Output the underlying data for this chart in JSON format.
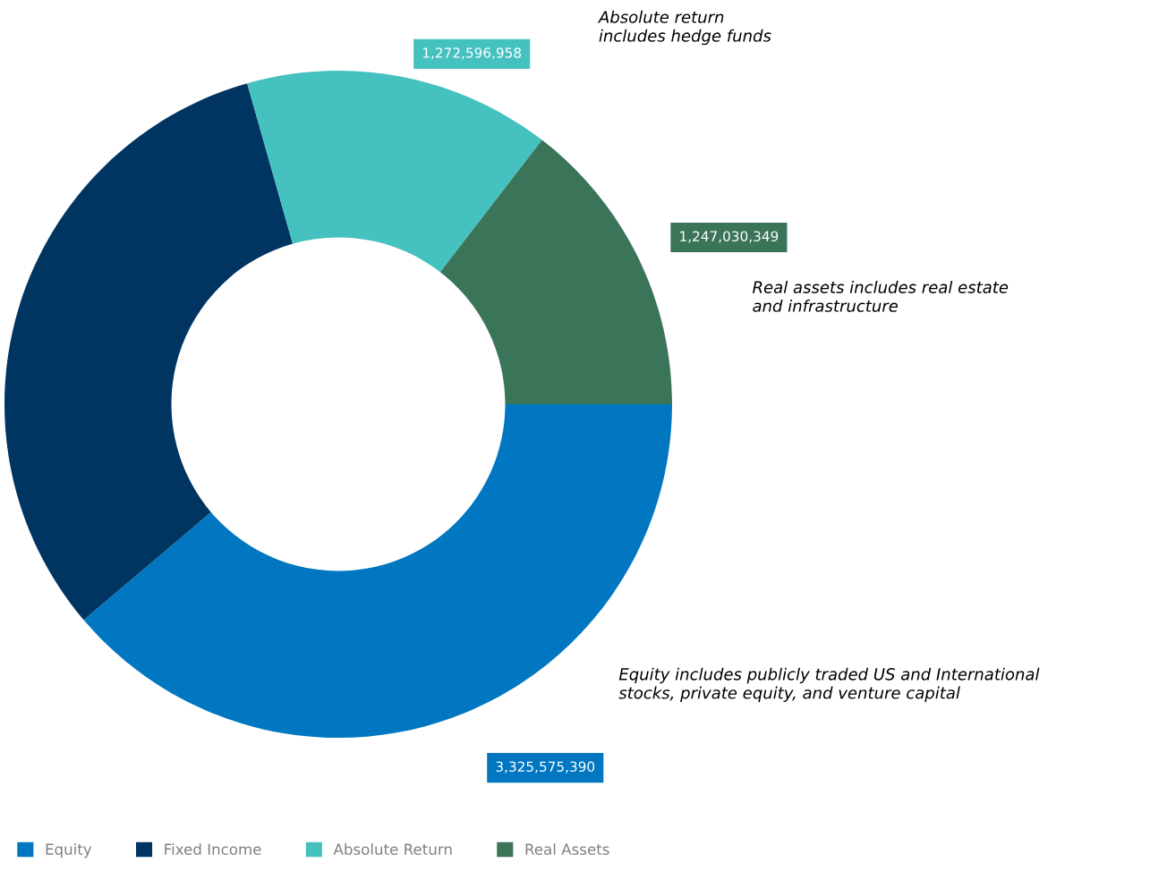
{
  "chart_data": {
    "type": "donut",
    "categories": [
      "Equity",
      "Fixed Income",
      "Absolute Return",
      "Real Assets"
    ],
    "values": [
      3325575390,
      2725000000,
      1272596958,
      1247030349
    ],
    "colors": [
      "#0077c0",
      "#003562",
      "#45c1c0",
      "#3a7459"
    ],
    "value_labels": [
      "3,325,575,390",
      null,
      "1,272,596,958",
      "1,247,030,349"
    ],
    "annotations": [
      "Absolute return\nincludes hedge funds",
      "Real assets includes real estate\nand infrastructure",
      "Equity includes publicly traded US and International\nstocks, private equity, and venture capital"
    ],
    "legend": "bottom"
  }
}
